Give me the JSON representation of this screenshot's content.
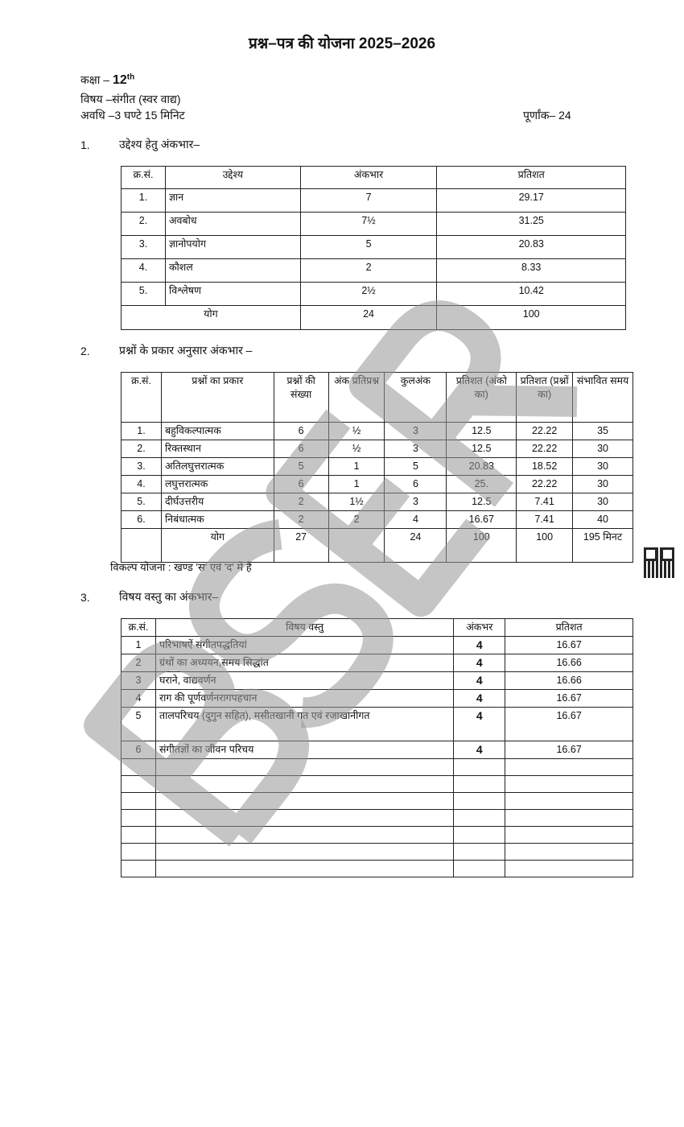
{
  "title": "प्रश्न–पत्र की योजना 2025–2026",
  "class_label": "कक्षा – ",
  "class_value": "12",
  "class_sup": "th",
  "subject": "विषय –संगीत (स्वर वाद्य)",
  "duration": "अवधि –3 घण्टे 15 मिनिट",
  "full_marks": "पूर्णांक– 24",
  "watermark": "BSER",
  "section1": {
    "num": "1.",
    "heading": "उद्देश्य हेतु अंकभार–",
    "headers": [
      "क्र.सं.",
      "उद्देश्य",
      "अंकभार",
      "प्रतिशत"
    ],
    "rows": [
      [
        "1.",
        "ज्ञान",
        "7",
        "29.17"
      ],
      [
        "2.",
        "अवबोध",
        "7½",
        "31.25"
      ],
      [
        "3.",
        "ज्ञानोपयोग",
        "5",
        "20.83"
      ],
      [
        "4.",
        "कौशल",
        "2",
        "8.33"
      ],
      [
        "5.",
        "विश्लेषण",
        "2½",
        "10.42"
      ]
    ],
    "total": [
      "योग",
      "24",
      "100"
    ]
  },
  "section2": {
    "num": "2.",
    "heading": "प्रश्नों के प्रकार अनुसार अंकभार –",
    "headers": [
      "क्र.सं.",
      "प्रश्नों का प्रकार",
      "प्रश्नों की संख्या",
      "अंक प्रतिप्रश्न",
      "कुलअंक",
      "प्रतिशत (अंको का)",
      "प्रतिशत (प्रश्नों का)",
      "संभावित समय"
    ],
    "rows": [
      [
        "1.",
        "बहुविकल्पात्मक",
        "6",
        "½",
        "3",
        "12.5",
        "22.22",
        "35"
      ],
      [
        "2.",
        "रिक्तस्थान",
        "6",
        "½",
        "3",
        "12.5",
        "22.22",
        "30"
      ],
      [
        "3.",
        "अतिलघुत्तरात्मक",
        "5",
        "1",
        "5",
        "20.83",
        "18.52",
        "30"
      ],
      [
        "4.",
        "लघुत्तरात्मक",
        "6",
        "1",
        "6",
        "25.",
        "22.22",
        "30"
      ],
      [
        "5.",
        "दीर्घउत्तरीय",
        "2",
        "1½",
        "3",
        "12.5",
        "7.41",
        "30"
      ],
      [
        "6.",
        "निबंधात्मक",
        "2",
        "2",
        "4",
        "16.67",
        "7.41",
        "40"
      ]
    ],
    "total": [
      "योग",
      "27",
      "",
      "24",
      "100",
      "100",
      "195 मिनट"
    ],
    "note": "विकल्प योजना : खण्ड 'स' एवं 'द' में हैं"
  },
  "section3": {
    "num": "3.",
    "heading": "विषय वस्तु का अंकभार–",
    "headers": [
      "क्र.सं.",
      "विषय वस्तु",
      "अंकभर",
      "प्रतिशत"
    ],
    "rows": [
      [
        "1",
        "परिभाषऐं संगीतपद्धतियां",
        "4",
        "16.67"
      ],
      [
        "2",
        "ग्रंथों का अध्ययन,समय सिद्धांत",
        "4",
        "16.66"
      ],
      [
        "3",
        "घराने, वाद्यवर्णन",
        "4",
        "16.66"
      ],
      [
        "4",
        "राग की पूर्णवर्णनरागपहचान",
        "4",
        "16.67"
      ],
      [
        "5",
        "तालपरिचय (दुगुन सहित), मसीतखानी गत एवं रजाखानीगत",
        "4",
        "16.67"
      ],
      [
        "6",
        "संगीतज्ञों का जीवन परिचय",
        "4",
        "16.67"
      ]
    ],
    "empty_rows": 7
  }
}
